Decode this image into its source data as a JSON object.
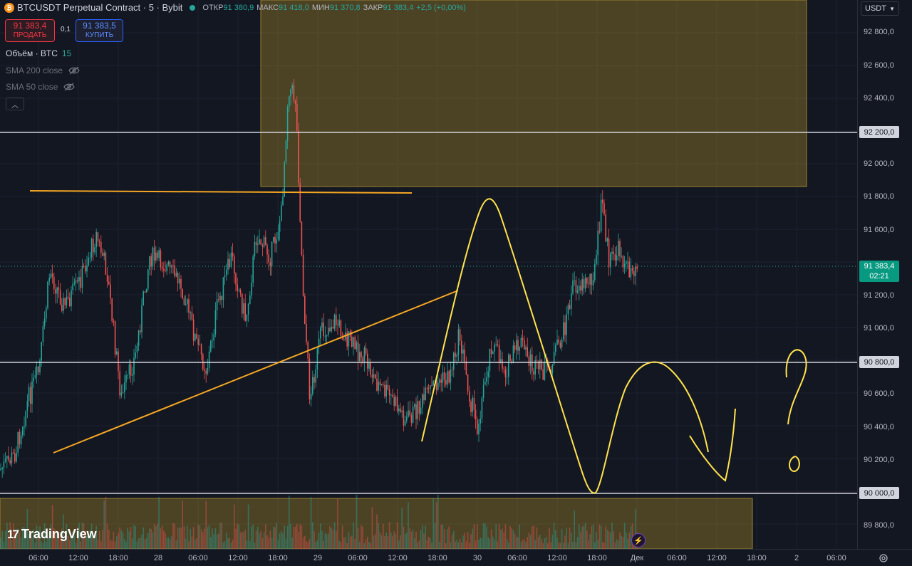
{
  "header": {
    "symbol": "BTCUSDT Perpetual Contract · 5 · Bybit",
    "symbol_icon": "bitcoin-icon",
    "ohlc": [
      {
        "label": "ОТКР",
        "value": "91 380,9"
      },
      {
        "label": "МАКС",
        "value": "91 418,0"
      },
      {
        "label": "МИН",
        "value": "91 370,8"
      },
      {
        "label": "ЗАКР",
        "value": "91 383,4"
      }
    ],
    "change": "+2,5 (+0,00%)"
  },
  "trade": {
    "sell_price": "91 383,4",
    "sell_label": "ПРОДАТЬ",
    "spread": "0,1",
    "buy_price": "91 383,5",
    "buy_label": "КУПИТЬ"
  },
  "indicators": {
    "volume_label": "Объём · BTC",
    "volume_value": "15",
    "sma200": "SMA 200 close",
    "sma50": "SMA 50 close"
  },
  "price_axis": {
    "currency": "USDT",
    "labels": [
      "92 800,0",
      "92 600,0",
      "92 400,0",
      "92 000,0",
      "91 800,0",
      "91 600,0",
      "91 200,0",
      "91 000,0",
      "90 600,0",
      "90 400,0",
      "90 200,0",
      "89 800,0"
    ],
    "tags": [
      "92 200,0",
      "90 800,0",
      "90 000,0"
    ],
    "current_price": "91 383,4",
    "countdown": "02:21"
  },
  "time_axis": {
    "labels": [
      "06:00",
      "12:00",
      "18:00",
      "28",
      "06:00",
      "12:00",
      "18:00",
      "29",
      "06:00",
      "12:00",
      "18:00",
      "30",
      "06:00",
      "12:00",
      "18:00",
      "Дек",
      "06:00",
      "12:00",
      "18:00",
      "2",
      "06:00"
    ]
  },
  "colors": {
    "up": "#26a69a",
    "down": "#ef5350",
    "zone": "#b8962a",
    "trendline": "#f5a623",
    "drawing": "#ffe34d",
    "hline": "#d1d4dc"
  },
  "brand": "TradingView"
}
